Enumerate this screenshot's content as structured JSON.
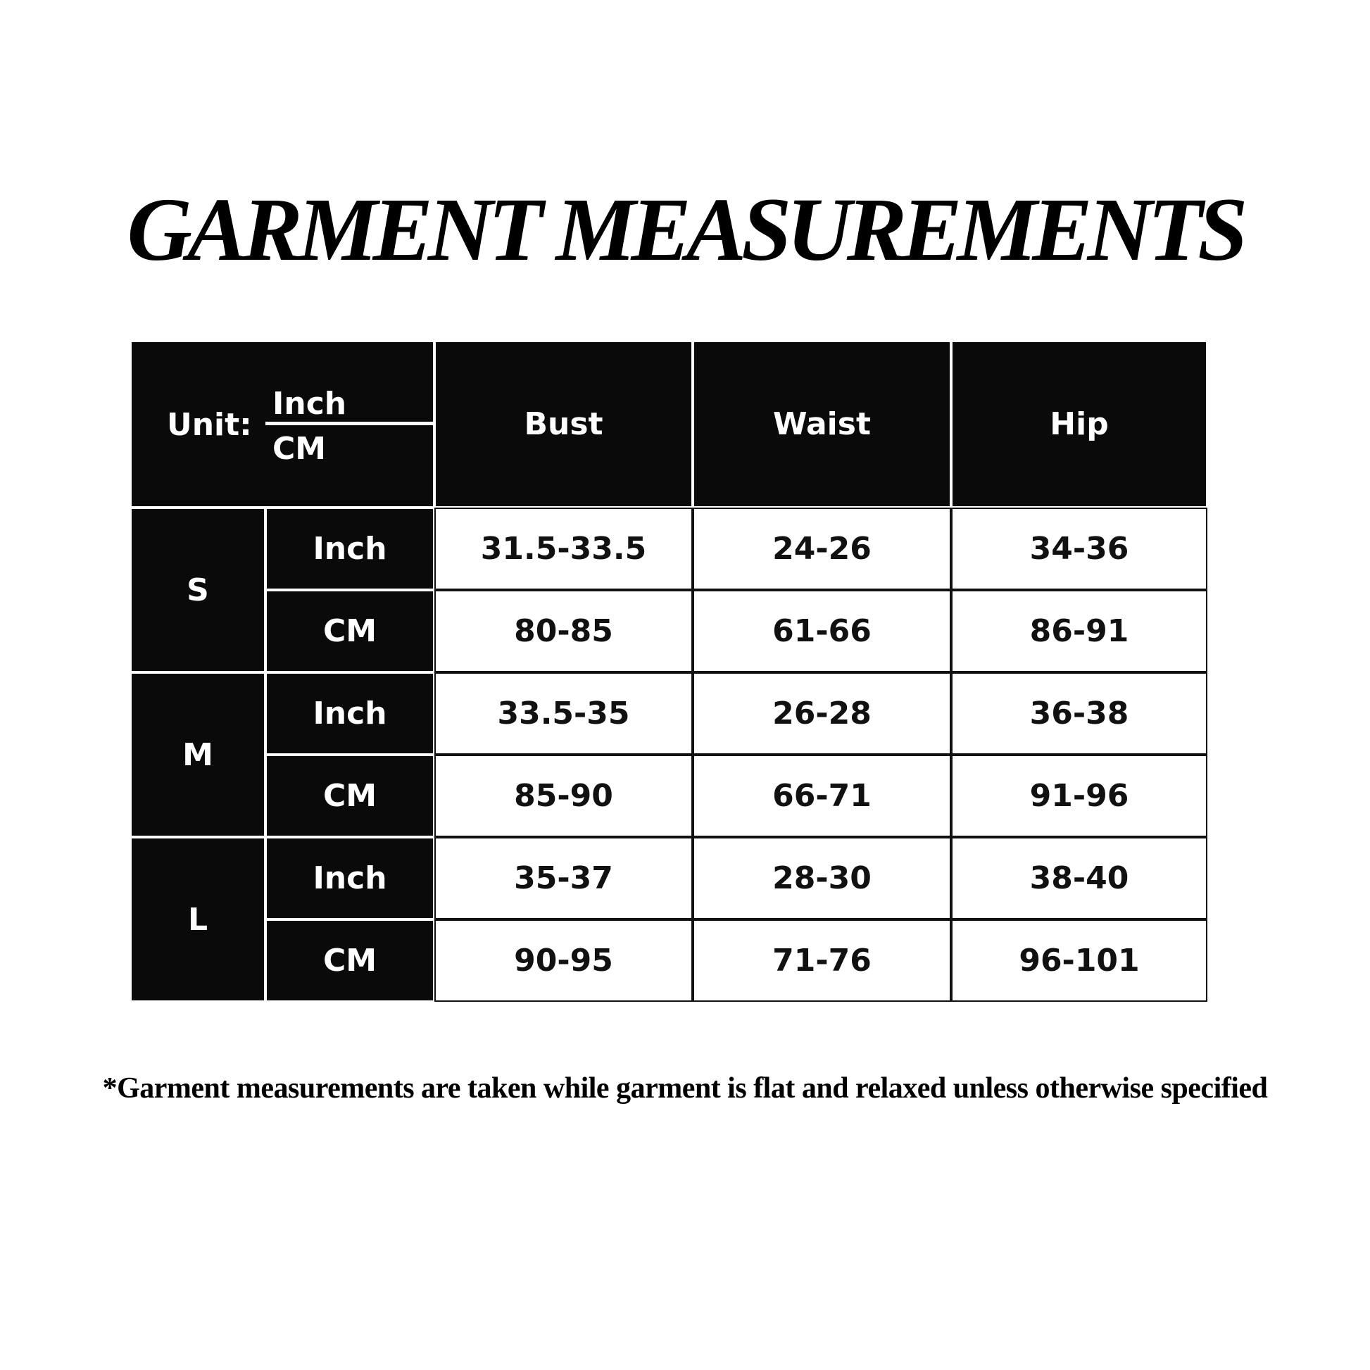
{
  "title": "GARMENT MEASUREMENTS",
  "table": {
    "unit_label": "Unit:",
    "unit_top": "Inch",
    "unit_bottom": "CM",
    "columns": [
      "Bust",
      "Waist",
      "Hip"
    ],
    "sizes": [
      {
        "size": "S",
        "rows": [
          {
            "unit": "Inch",
            "values": [
              "31.5-33.5",
              "24-26",
              "34-36"
            ]
          },
          {
            "unit": "CM",
            "values": [
              "80-85",
              "61-66",
              "86-91"
            ]
          }
        ]
      },
      {
        "size": "M",
        "rows": [
          {
            "unit": "Inch",
            "values": [
              "33.5-35",
              "26-28",
              "36-38"
            ]
          },
          {
            "unit": "CM",
            "values": [
              "85-90",
              "66-71",
              "91-96"
            ]
          }
        ]
      },
      {
        "size": "L",
        "rows": [
          {
            "unit": "Inch",
            "values": [
              "35-37",
              "28-30",
              "38-40"
            ]
          },
          {
            "unit": "CM",
            "values": [
              "90-95",
              "71-76",
              "96-101"
            ]
          }
        ]
      }
    ]
  },
  "footnote": "*Garment measurements are taken while garment is flat and relaxed unless otherwise specified"
}
